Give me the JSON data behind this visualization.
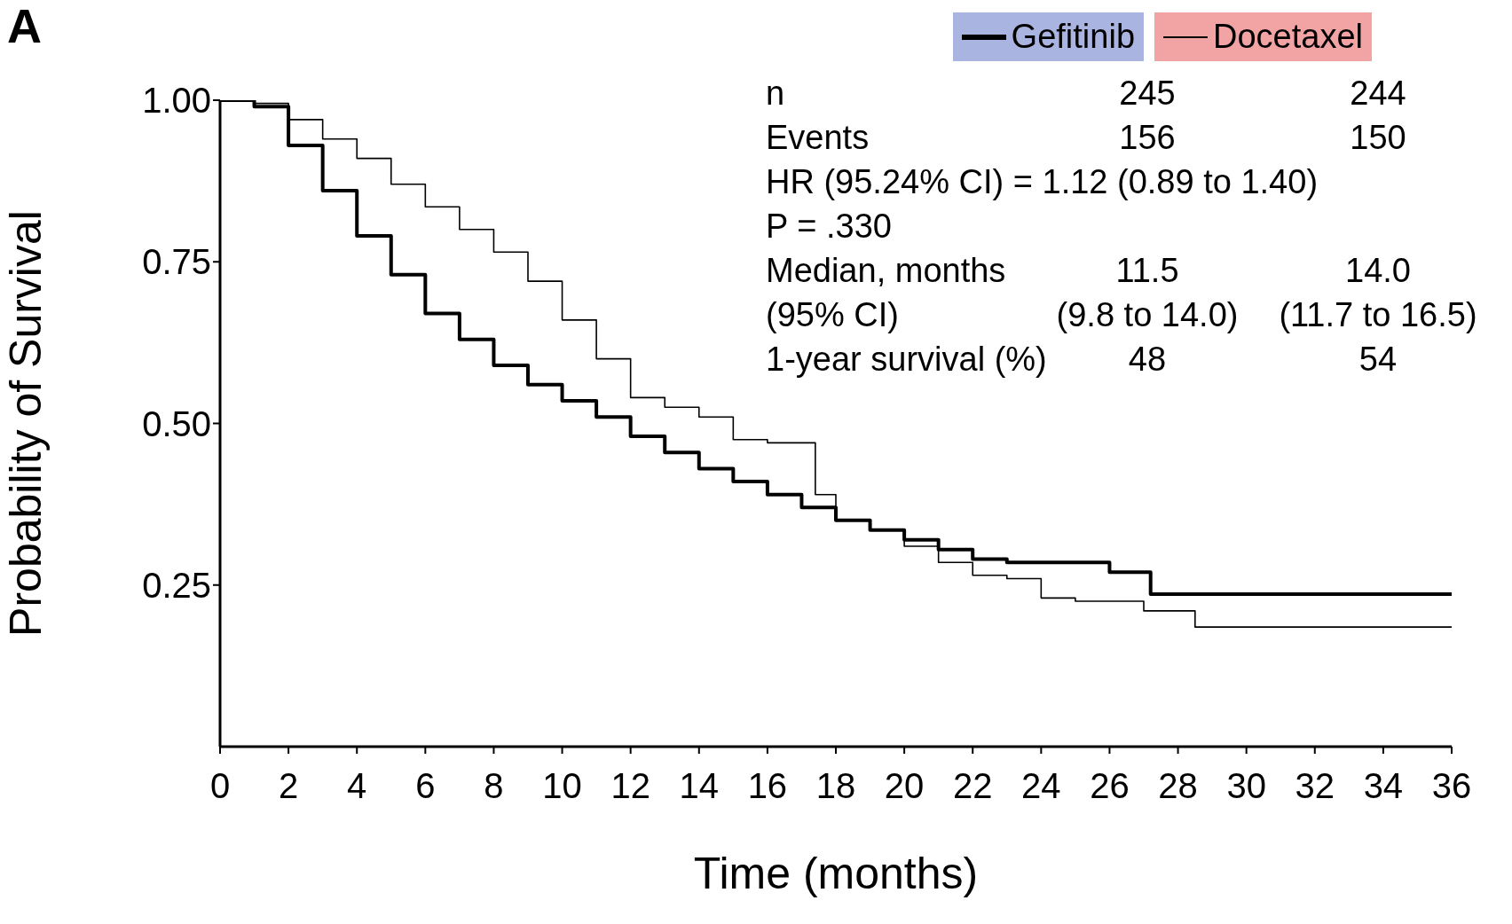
{
  "chart_data": {
    "type": "step",
    "title": "A",
    "xlabel": "Time (months)",
    "ylabel": "Probability of Survival",
    "xlim": [
      0,
      36
    ],
    "xticks": [
      0,
      2,
      4,
      6,
      8,
      10,
      12,
      14,
      16,
      18,
      20,
      22,
      24,
      26,
      28,
      30,
      32,
      34,
      36
    ],
    "ylim": [
      0,
      1
    ],
    "yticks": [
      {
        "value": 0.25,
        "label": "0.25"
      },
      {
        "value": 0.5,
        "label": "0.50"
      },
      {
        "value": 0.75,
        "label": "0.75"
      },
      {
        "value": 1,
        "label": "1.00"
      }
    ],
    "legend": "top right",
    "marker": "none",
    "line_style": "solid",
    "series": [
      {
        "name": "Gefitinib",
        "color": "#000000",
        "x": [
          0,
          1,
          2,
          3,
          4,
          5,
          6,
          7,
          8,
          9,
          10,
          11,
          12,
          13,
          14,
          15,
          16,
          17,
          18,
          19,
          20,
          21,
          22,
          23,
          24,
          25,
          26,
          27.2,
          30,
          33,
          36
        ],
        "values": [
          1,
          0.99,
          0.93,
          0.86,
          0.79,
          0.73,
          0.67,
          0.63,
          0.59,
          0.56,
          0.535,
          0.51,
          0.48,
          0.455,
          0.43,
          0.41,
          0.39,
          0.37,
          0.35,
          0.335,
          0.32,
          0.305,
          0.29,
          0.285,
          0.285,
          0.285,
          0.27,
          0.236,
          0.236,
          0.236,
          0.236
        ]
      },
      {
        "name": "Docetaxel",
        "color": "#000000",
        "x": [
          0,
          1,
          2,
          3,
          4,
          5,
          6,
          7,
          8,
          9,
          10,
          11,
          12,
          13,
          14,
          15,
          16,
          17.4,
          18,
          19,
          20,
          21,
          22,
          23,
          24,
          25,
          26,
          27,
          28.5,
          31,
          33,
          36
        ],
        "values": [
          1,
          0.995,
          0.97,
          0.94,
          0.91,
          0.87,
          0.835,
          0.8,
          0.765,
          0.72,
          0.66,
          0.6,
          0.54,
          0.525,
          0.51,
          0.475,
          0.47,
          0.39,
          0.35,
          0.335,
          0.31,
          0.285,
          0.265,
          0.26,
          0.23,
          0.225,
          0.225,
          0.21,
          0.185,
          0.185,
          0.185,
          0.185
        ]
      }
    ],
    "annotations": [
      "n\t245\t244",
      "Events\t156\t150",
      "HR (95.24% CI) = 1.12 (0.89 to 1.40)",
      "P = .330",
      "Median, months\t11.5\t14.0",
      "(95% CI)\t(9.8 to 14.0)\t(11.7 to 16.5)",
      "1-year survival (%)\t48\t54"
    ]
  }
}
